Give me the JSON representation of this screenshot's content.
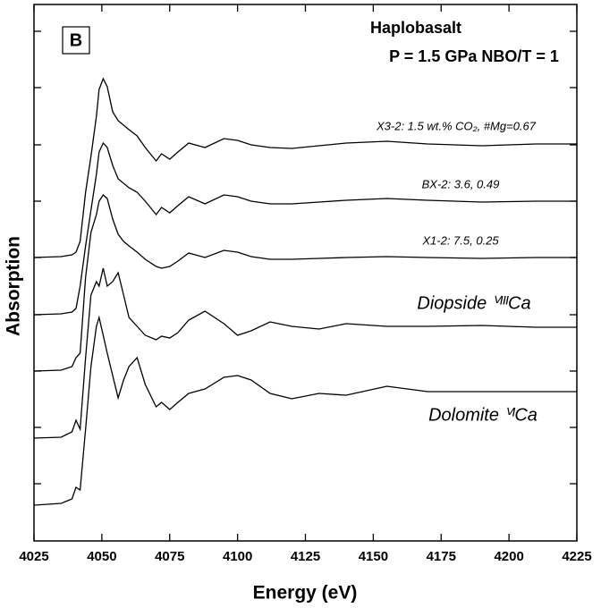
{
  "chart_data": {
    "type": "line",
    "panel": "B",
    "title": "Haplobasalt",
    "subtitle": "P = 1.5 GPa NBO/T = 1",
    "x_label": "Energy (eV)",
    "y_label": "Absorption",
    "xlim": [
      4025,
      4225
    ],
    "xticks": [
      4025,
      4050,
      4075,
      4100,
      4125,
      4150,
      4175,
      4200,
      4225
    ],
    "ylim": [
      0,
      600
    ],
    "yticks": [
      64,
      127,
      190,
      253,
      317,
      380,
      443,
      507,
      570
    ],
    "x": [
      4025,
      4035,
      4039,
      4040.5,
      4042,
      4044,
      4046,
      4048,
      4049,
      4050.5,
      4052,
      4054,
      4056,
      4058,
      4060,
      4063,
      4066,
      4070,
      4072,
      4075,
      4078,
      4082,
      4088,
      4095,
      4100,
      4105,
      4112,
      4120,
      4130,
      4140,
      4155,
      4170,
      4190,
      4210,
      4225
    ],
    "series": [
      {
        "name": "X3-2: 1.5 wt.% CO₂, #Mg=0.67",
        "color": "#000000",
        "values": [
          317,
          318,
          320,
          323,
          335,
          390,
          430,
          475,
          505,
          517,
          508,
          480,
          470,
          465,
          460,
          453,
          440,
          425,
          433,
          427,
          435,
          445,
          440,
          450,
          448,
          443,
          440,
          439,
          442,
          445,
          447,
          444,
          442,
          444,
          444
        ]
      },
      {
        "name": "BX-2: 3.6, 0.49",
        "color": "#000000",
        "values": [
          253,
          254,
          256,
          260,
          285,
          330,
          370,
          410,
          435,
          445,
          440,
          420,
          405,
          400,
          395,
          390,
          380,
          365,
          373,
          367,
          375,
          385,
          377,
          387,
          385,
          380,
          377,
          377,
          379,
          381,
          383,
          381,
          379,
          380,
          380
        ]
      },
      {
        "name": "X1-2: 7.5, 0.25",
        "color": "#000000",
        "values": [
          190,
          191,
          195,
          205,
          210,
          295,
          345,
          365,
          380,
          387,
          383,
          360,
          343,
          335,
          330,
          323,
          315,
          307,
          305,
          307,
          313,
          322,
          317,
          325,
          323,
          318,
          315,
          315,
          316,
          317,
          318,
          317,
          316,
          317,
          317
        ]
      },
      {
        "name": "Diopside ⱽᴵᴵᴵCa",
        "color": "#000000",
        "values": [
          115,
          116,
          122,
          135,
          125,
          205,
          275,
          290,
          285,
          305,
          285,
          290,
          300,
          275,
          250,
          240,
          230,
          225,
          229,
          227,
          233,
          247,
          257,
          243,
          230,
          235,
          245,
          240,
          237,
          243,
          240,
          240,
          241,
          239,
          239
        ]
      },
      {
        "name": "Dolomite ⱽᴵCa",
        "color": "#000000",
        "values": [
          40,
          42,
          47,
          60,
          57,
          125,
          195,
          240,
          250,
          230,
          210,
          185,
          160,
          180,
          195,
          205,
          175,
          150,
          155,
          147,
          155,
          165,
          170,
          183,
          185,
          180,
          165,
          159,
          165,
          163,
          173,
          167,
          167,
          167,
          167
        ]
      }
    ]
  }
}
